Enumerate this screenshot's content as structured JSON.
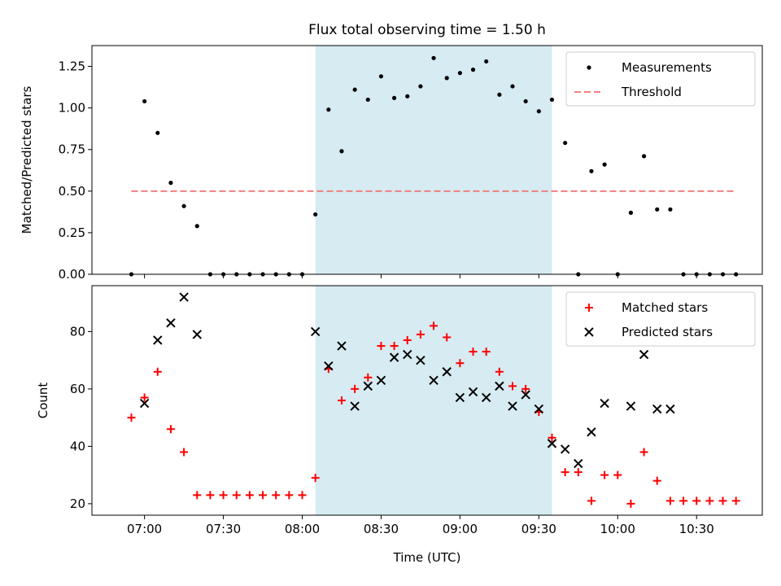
{
  "chart_data": [
    {
      "type": "scatter",
      "title": "Flux total observing time = 1.50 h",
      "xlabel": "",
      "ylabel": "Matched/Predicted stars",
      "ylim": [
        0,
        1.375
      ],
      "xlim": [
        "06:40",
        "10:55"
      ],
      "x_ticks": [
        "07:00",
        "07:30",
        "08:00",
        "08:30",
        "09:00",
        "09:30",
        "10:00",
        "10:30"
      ],
      "y_ticks": [
        "0.00",
        "0.25",
        "0.50",
        "0.75",
        "1.00",
        "1.25"
      ],
      "legend_position": "upper right",
      "shaded_span": [
        "08:05",
        "09:35"
      ],
      "shade_color": "#add8e6",
      "series": [
        {
          "name": "Measurements",
          "color": "#000000",
          "marker": "dot",
          "x": [
            "06:55",
            "07:00",
            "07:05",
            "07:10",
            "07:15",
            "07:20",
            "07:25",
            "07:30",
            "07:35",
            "07:40",
            "07:45",
            "07:50",
            "07:55",
            "08:00",
            "08:05",
            "08:10",
            "08:15",
            "08:20",
            "08:25",
            "08:30",
            "08:35",
            "08:40",
            "08:45",
            "08:50",
            "08:55",
            "09:00",
            "09:05",
            "09:10",
            "09:15",
            "09:20",
            "09:25",
            "09:30",
            "09:35",
            "09:40",
            "09:45",
            "09:50",
            "09:55",
            "10:00",
            "10:05",
            "10:10",
            "10:15",
            "10:20",
            "10:25",
            "10:30",
            "10:35",
            "10:40",
            "10:45"
          ],
          "y": [
            0.0,
            1.04,
            0.85,
            0.55,
            0.41,
            0.29,
            0.0,
            0.0,
            0.0,
            0.0,
            0.0,
            0.0,
            0.0,
            0.0,
            0.36,
            0.99,
            0.74,
            1.11,
            1.05,
            1.19,
            1.06,
            1.07,
            1.13,
            1.3,
            1.18,
            1.21,
            1.23,
            1.28,
            1.08,
            1.13,
            1.04,
            0.98,
            1.05,
            0.79,
            0.0,
            0.62,
            0.66,
            0.0,
            0.37,
            0.71,
            0.39,
            0.39,
            0.0,
            0.0,
            0.0,
            0.0,
            0.0
          ]
        },
        {
          "name": "Threshold",
          "color": "#f08080",
          "style": "dashed",
          "x": [
            "06:55",
            "10:45"
          ],
          "y": [
            0.5,
            0.5
          ]
        }
      ]
    },
    {
      "type": "scatter",
      "title": "",
      "xlabel": "Time (UTC)",
      "ylabel": "Count",
      "ylim": [
        16,
        96
      ],
      "xlim": [
        "06:40",
        "10:55"
      ],
      "x_ticks": [
        "07:00",
        "07:30",
        "08:00",
        "08:30",
        "09:00",
        "09:30",
        "10:00",
        "10:30"
      ],
      "y_ticks": [
        "20",
        "40",
        "60",
        "80"
      ],
      "legend_position": "upper right",
      "shaded_span": [
        "08:05",
        "09:35"
      ],
      "shade_color": "#add8e6",
      "series": [
        {
          "name": "Matched stars",
          "color": "#ff0000",
          "marker": "plus",
          "x": [
            "06:55",
            "07:00",
            "07:05",
            "07:10",
            "07:15",
            "07:20",
            "07:25",
            "07:30",
            "07:35",
            "07:40",
            "07:45",
            "07:50",
            "07:55",
            "08:00",
            "08:05",
            "08:10",
            "08:15",
            "08:20",
            "08:25",
            "08:30",
            "08:35",
            "08:40",
            "08:45",
            "08:50",
            "08:55",
            "09:00",
            "09:05",
            "09:10",
            "09:15",
            "09:20",
            "09:25",
            "09:30",
            "09:35",
            "09:40",
            "09:45",
            "09:50",
            "09:55",
            "10:00",
            "10:05",
            "10:10",
            "10:15",
            "10:20",
            "10:25",
            "10:30",
            "10:35",
            "10:40",
            "10:45"
          ],
          "y": [
            50,
            57,
            66,
            46,
            38,
            23,
            23,
            23,
            23,
            23,
            23,
            23,
            23,
            23,
            29,
            67,
            56,
            60,
            64,
            75,
            75,
            77,
            79,
            82,
            78,
            69,
            73,
            73,
            66,
            61,
            60,
            52,
            43,
            31,
            31,
            21,
            30,
            30,
            20,
            38,
            28,
            21,
            21,
            21,
            21,
            21,
            21
          ]
        },
        {
          "name": "Predicted stars",
          "color": "#000000",
          "marker": "x",
          "x": [
            "07:00",
            "07:05",
            "07:10",
            "07:15",
            "07:20",
            "08:05",
            "08:10",
            "08:15",
            "08:20",
            "08:25",
            "08:30",
            "08:35",
            "08:40",
            "08:45",
            "08:50",
            "08:55",
            "09:00",
            "09:05",
            "09:10",
            "09:15",
            "09:20",
            "09:25",
            "09:30",
            "09:35",
            "09:40",
            "09:45",
            "09:50",
            "09:55",
            "10:05",
            "10:10",
            "10:15",
            "10:20"
          ],
          "y": [
            55,
            77,
            83,
            92,
            79,
            80,
            68,
            75,
            54,
            61,
            63,
            71,
            72,
            70,
            63,
            66,
            57,
            59,
            57,
            61,
            54,
            58,
            53,
            41,
            39,
            34,
            45,
            55,
            54,
            72,
            53,
            53
          ]
        }
      ]
    }
  ]
}
